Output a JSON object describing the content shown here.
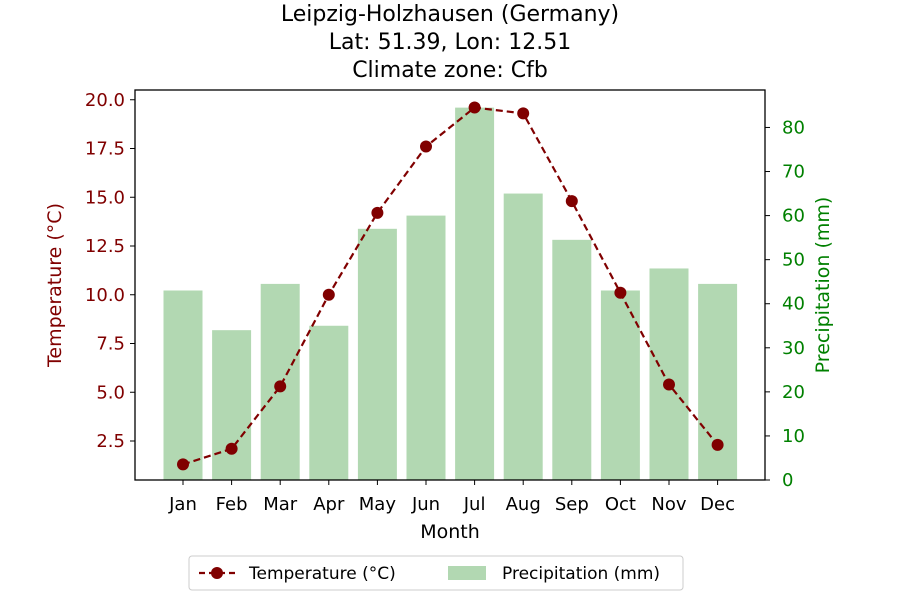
{
  "chart_data": {
    "type": "bar+line",
    "title_lines": [
      "Leipzig-Holzhausen (Germany)",
      "Lat: 51.39, Lon: 12.51",
      "Climate zone: Cfb"
    ],
    "xlabel": "Month",
    "categories": [
      "Jan",
      "Feb",
      "Mar",
      "Apr",
      "May",
      "Jun",
      "Jul",
      "Aug",
      "Sep",
      "Oct",
      "Nov",
      "Dec"
    ],
    "temperature": {
      "name": "Temperature (°C)",
      "axis_label": "Temperature (°C)",
      "values": [
        1.3,
        2.1,
        5.3,
        10.0,
        14.2,
        17.6,
        19.6,
        19.3,
        14.8,
        10.1,
        5.4,
        2.3
      ],
      "ylim": [
        0.5,
        20.5
      ],
      "ticks": [
        "2.5",
        "5.0",
        "7.5",
        "10.0",
        "12.5",
        "15.0",
        "17.5",
        "20.0"
      ],
      "color": "#800000",
      "style": "dashed line with circle markers"
    },
    "precipitation": {
      "name": "Precipitation (mm)",
      "axis_label": "Precipitation (mm)",
      "values": [
        43,
        34,
        44.5,
        35,
        57,
        60,
        84.5,
        65,
        54.5,
        43,
        48,
        44.5
      ],
      "ylim": [
        0,
        88.5
      ],
      "ticks": [
        "0",
        "10",
        "20",
        "30",
        "40",
        "50",
        "60",
        "70",
        "80"
      ],
      "color": "#b2d8b2",
      "axis_color": "#008000"
    },
    "legend_position": "bottom-center"
  }
}
